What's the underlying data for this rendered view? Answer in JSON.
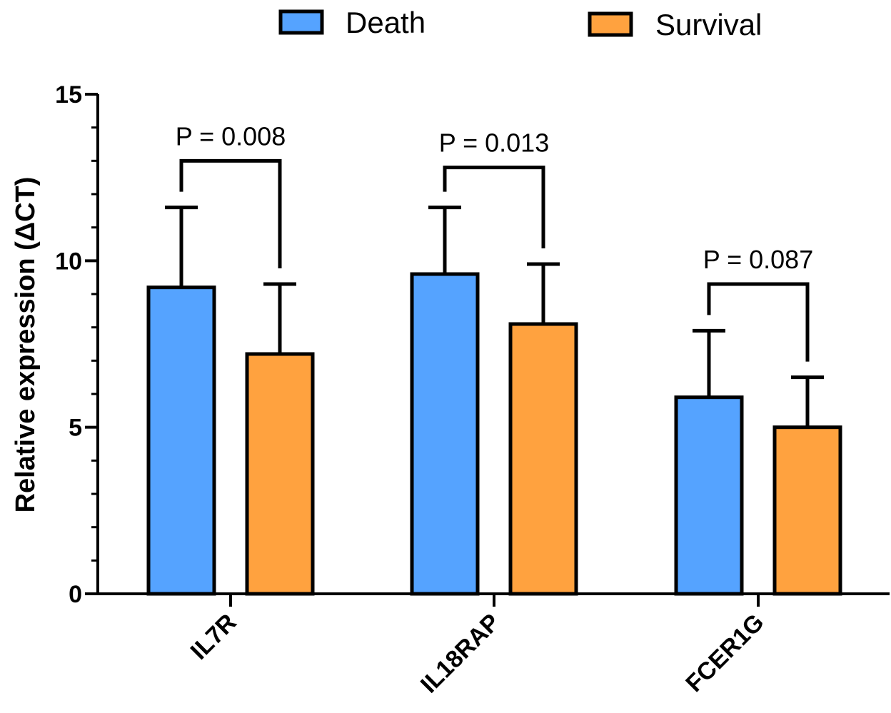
{
  "chart_data": {
    "type": "bar",
    "categories": [
      "IL7R",
      "IL18RAP",
      "FCER1G"
    ],
    "series": [
      {
        "name": "Death",
        "values": [
          9.2,
          9.6,
          5.9
        ],
        "errors": [
          2.4,
          2.0,
          2.0
        ],
        "color": "#55A3FF"
      },
      {
        "name": "Survival",
        "values": [
          7.2,
          8.1,
          5.0
        ],
        "errors": [
          2.1,
          1.8,
          1.5
        ],
        "color": "#FFA23F"
      }
    ],
    "annotations": [
      "P = 0.008",
      "P = 0.013",
      "P = 0.087"
    ],
    "bracket_tops": [
      13.0,
      12.8,
      9.3
    ],
    "xlabel": "",
    "ylabel": "Relative expression (ΔCT)",
    "ylim": [
      0,
      15
    ],
    "yticks": [
      "0",
      "5",
      "10",
      "15"
    ],
    "legend_position": "top-center",
    "grid": false
  }
}
